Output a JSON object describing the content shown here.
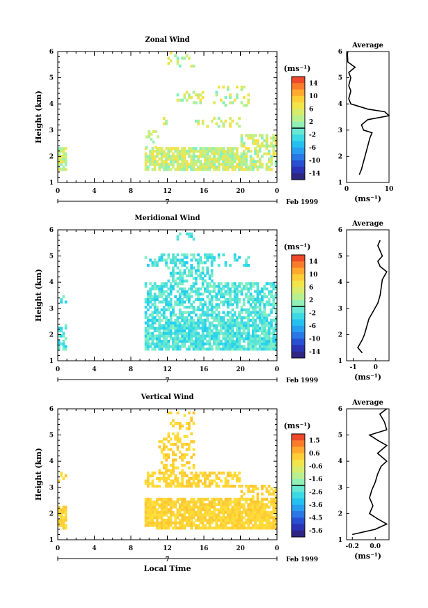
{
  "chart_data": [
    {
      "type": "heatmap",
      "title": "Zonal Wind",
      "ylabel": "Height (km)",
      "xlabel": "",
      "date_label": "Feb 1999",
      "x_ticks": [
        "0",
        "4",
        "8",
        "12",
        "16",
        "20",
        "0"
      ],
      "y_ticks": [
        "1",
        "2",
        "3",
        "4",
        "5",
        "6"
      ],
      "xlim": [
        0,
        24
      ],
      "ylim": [
        1,
        6
      ],
      "colorbar": {
        "unit": "(ms⁻¹)",
        "ticks": [
          "14",
          "10",
          "6",
          "2",
          "-2",
          "-6",
          "-10",
          "-14"
        ],
        "min": -16,
        "max": 16
      },
      "average": {
        "title": "Average",
        "unit": "(ms⁻¹)",
        "x_ticks": [
          "0",
          "10"
        ],
        "xlim": [
          0,
          10
        ],
        "profile": [
          [
            1.3,
            3
          ],
          [
            1.5,
            3.5
          ],
          [
            1.8,
            4
          ],
          [
            2.1,
            4.5
          ],
          [
            2.4,
            5
          ],
          [
            2.7,
            5.5
          ],
          [
            2.9,
            6
          ],
          [
            3.0,
            4
          ],
          [
            3.2,
            3.5
          ],
          [
            3.4,
            5
          ],
          [
            3.55,
            10
          ],
          [
            3.7,
            9
          ],
          [
            3.8,
            5
          ],
          [
            4.0,
            1
          ],
          [
            4.2,
            0.5
          ],
          [
            4.5,
            1
          ],
          [
            4.7,
            0.5
          ],
          [
            5.0,
            1
          ],
          [
            5.2,
            0.5
          ],
          [
            5.4,
            2
          ],
          [
            5.6,
            0.3
          ],
          [
            5.9,
            0.2
          ],
          [
            6.0,
            0.3
          ]
        ]
      }
    },
    {
      "type": "heatmap",
      "title": "Meridional Wind",
      "ylabel": "Height (km)",
      "xlabel": "",
      "date_label": "Feb 1999",
      "x_ticks": [
        "0",
        "4",
        "8",
        "12",
        "16",
        "20",
        "0"
      ],
      "y_ticks": [
        "1",
        "2",
        "3",
        "4",
        "5",
        "6"
      ],
      "xlim": [
        0,
        24
      ],
      "ylim": [
        1,
        6
      ],
      "colorbar": {
        "unit": "(ms⁻¹)",
        "ticks": [
          "14",
          "10",
          "6",
          "2",
          "-2",
          "-6",
          "-10",
          "-14"
        ],
        "min": -16,
        "max": 16
      },
      "average": {
        "title": "Average",
        "unit": "(ms⁻¹)",
        "x_ticks": [
          "-1",
          "0"
        ],
        "xlim": [
          -1.3,
          0.6
        ],
        "profile": [
          [
            1.3,
            -0.6
          ],
          [
            1.5,
            -0.8
          ],
          [
            1.8,
            -0.6
          ],
          [
            2.0,
            -0.5
          ],
          [
            2.3,
            -0.4
          ],
          [
            2.6,
            -0.3
          ],
          [
            2.9,
            -0.1
          ],
          [
            3.2,
            0.1
          ],
          [
            3.5,
            0.2
          ],
          [
            3.8,
            0.25
          ],
          [
            4.1,
            0.3
          ],
          [
            4.4,
            0.5
          ],
          [
            4.6,
            0.2
          ],
          [
            4.8,
            0.1
          ],
          [
            5.0,
            0.3
          ],
          [
            5.4,
            0.1
          ],
          [
            5.6,
            0.2
          ]
        ]
      }
    },
    {
      "type": "heatmap",
      "title": "Vertical Wind",
      "ylabel": "Height (km)",
      "xlabel": "Local Time",
      "date_label": "Feb 1999",
      "x_ticks": [
        "0",
        "4",
        "8",
        "12",
        "16",
        "20",
        "0"
      ],
      "y_ticks": [
        "1",
        "2",
        "3",
        "4",
        "5",
        "6"
      ],
      "xlim": [
        0,
        24
      ],
      "ylim": [
        1,
        6
      ],
      "colorbar": {
        "unit": "(ms⁻¹)",
        "ticks": [
          "1.5",
          "0.6",
          "-0.6",
          "-1.6",
          "-2.6",
          "-3.6",
          "-4.5",
          "-5.6"
        ],
        "min": -6,
        "max": 2
      },
      "average": {
        "title": "Average",
        "unit": "(ms⁻¹)",
        "x_ticks": [
          "-0.2",
          "0.0"
        ],
        "xlim": [
          -0.25,
          0.12
        ],
        "profile": [
          [
            1.2,
            -0.2
          ],
          [
            1.4,
            0.0
          ],
          [
            1.6,
            0.1
          ],
          [
            1.8,
            0.02
          ],
          [
            2.0,
            -0.05
          ],
          [
            2.3,
            -0.02
          ],
          [
            2.6,
            -0.05
          ],
          [
            2.9,
            -0.03
          ],
          [
            3.2,
            0.0
          ],
          [
            3.5,
            0.02
          ],
          [
            3.8,
            0.05
          ],
          [
            4.0,
            0.1
          ],
          [
            4.3,
            0.02
          ],
          [
            4.6,
            0.1
          ],
          [
            4.8,
            0.02
          ],
          [
            5.0,
            -0.05
          ],
          [
            5.2,
            0.1
          ],
          [
            5.5,
            0.08
          ],
          [
            5.8,
            0.04
          ],
          [
            6.0,
            0.1
          ]
        ]
      }
    }
  ]
}
